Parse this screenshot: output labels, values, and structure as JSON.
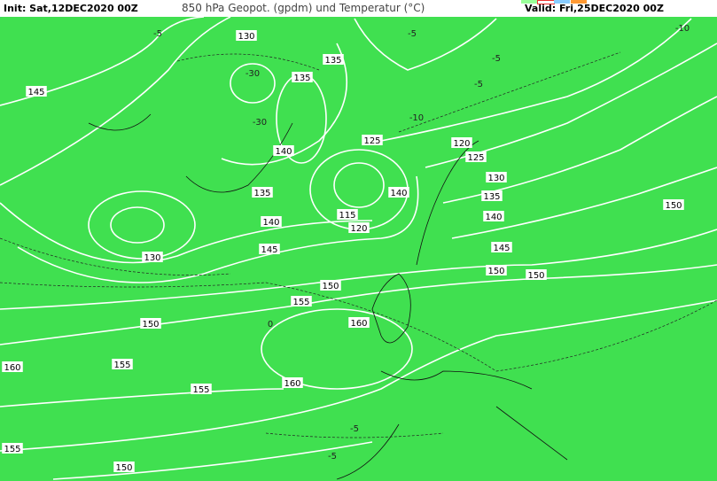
{
  "header": {
    "init": "Init: Sat,12DEC2020 00Z",
    "title": "850 hPa Geopot. (gpdm) und Temperatur (°C)",
    "valid": "Valid: Fri,25DEC2020 00Z"
  },
  "map": {
    "geopotential_labels": [
      "130",
      "145",
      "135",
      "140",
      "150",
      "130",
      "135",
      "140",
      "125",
      "120",
      "125",
      "130",
      "135",
      "140",
      "145",
      "150",
      "115",
      "120",
      "140",
      "145",
      "135",
      "150",
      "150",
      "155",
      "160",
      "160",
      "150",
      "155",
      "155",
      "150",
      "160",
      "155"
    ],
    "temperature_labels": [
      "-30",
      "-30",
      "-10",
      "-10",
      "-5",
      "-5",
      "0",
      "-5",
      "-5",
      "-5",
      "-5"
    ],
    "colors": {
      "very_cold": "#b000ff",
      "cold": "#4060ff",
      "cool": "#20d0e0",
      "mild": "#30e060",
      "warm_green": "#a0e020",
      "yellow": "#f0e000",
      "orange": "#f0a000",
      "dark_orange": "#d07000"
    }
  }
}
